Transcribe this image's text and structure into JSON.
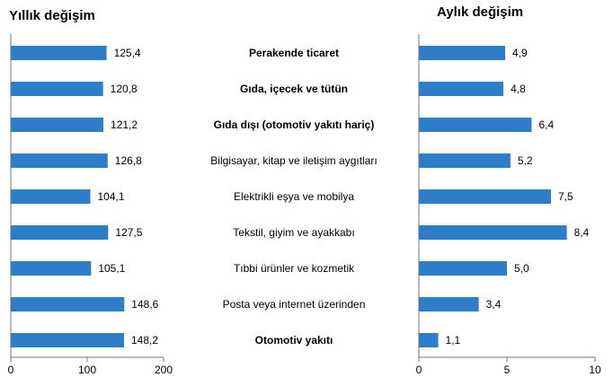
{
  "chart_data": [
    {
      "type": "bar",
      "orientation": "horizontal",
      "title": "Yıllık değişim",
      "categories": [
        "Perakende ticaret",
        "Gıda, içecek ve tütün",
        "Gıda dışı (otomotiv yakıtı hariç)",
        "Bilgisayar, kitap ve iletişim aygıtları",
        "Elektrikli eşya ve mobilya",
        "Tekstil, giyim ve ayakkabı",
        "Tıbbi ürünler ve kozmetik",
        "Posta veya internet üzerinden",
        "Otomotiv yakıtı"
      ],
      "values": [
        125.4,
        120.8,
        121.2,
        126.8,
        104.1,
        127.5,
        105.1,
        148.6,
        148.2
      ],
      "value_labels": [
        "125,4",
        "120,8",
        "121,2",
        "126,8",
        "104,1",
        "127,5",
        "105,1",
        "148,6",
        "148,2"
      ],
      "xlim": [
        0,
        200
      ],
      "ticks": [
        0,
        100,
        200
      ],
      "tick_labels": [
        "0",
        "100",
        "200"
      ],
      "grid": false,
      "legend": "none"
    },
    {
      "type": "bar",
      "orientation": "horizontal",
      "title": "Aylık değişim",
      "categories": [
        "Perakende ticaret",
        "Gıda, içecek ve tütün",
        "Gıda dışı (otomotiv yakıtı hariç)",
        "Bilgisayar, kitap ve iletişim aygıtları",
        "Elektrikli eşya ve mobilya",
        "Tekstil, giyim ve ayakkabı",
        "Tıbbi ürünler ve kozmetik",
        "Posta veya internet üzerinden",
        "Otomotiv yakıtı"
      ],
      "values": [
        4.9,
        4.8,
        6.4,
        5.2,
        7.5,
        8.4,
        5.0,
        3.4,
        1.1
      ],
      "value_labels": [
        "4,9",
        "4,8",
        "6,4",
        "5,2",
        "7,5",
        "8,4",
        "5,0",
        "3,4",
        "1,1"
      ],
      "xlim": [
        0,
        10
      ],
      "ticks": [
        0,
        5,
        10
      ],
      "tick_labels": [
        "0",
        "5",
        "10"
      ],
      "grid": false,
      "legend": "none"
    }
  ],
  "category_emphasis": [
    true,
    true,
    true,
    false,
    false,
    false,
    false,
    false,
    true
  ],
  "bar_color": "#2e7dc8"
}
